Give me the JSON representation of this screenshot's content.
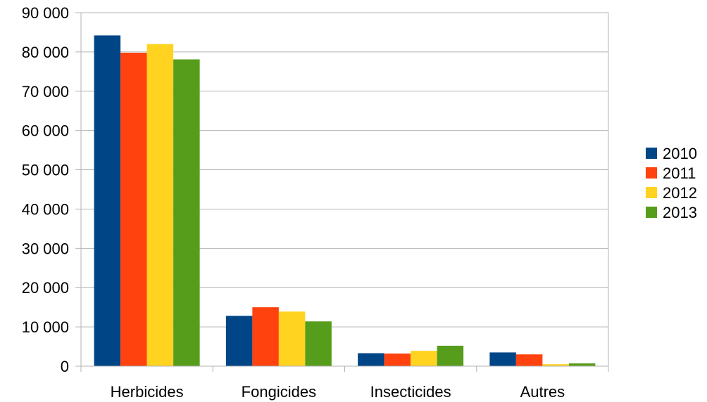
{
  "chart_data": {
    "type": "bar",
    "categories": [
      "Herbicides",
      "Fongicides",
      "Insecticides",
      "Autres"
    ],
    "series": [
      {
        "name": "2010",
        "color": "#004586",
        "values": [
          84200,
          12800,
          3300,
          3500
        ]
      },
      {
        "name": "2011",
        "color": "#ff420e",
        "values": [
          79800,
          15000,
          3200,
          3000
        ]
      },
      {
        "name": "2012",
        "color": "#ffd320",
        "values": [
          82000,
          13900,
          3900,
          500
        ]
      },
      {
        "name": "2013",
        "color": "#579d1c",
        "values": [
          78100,
          11400,
          5200,
          700
        ]
      }
    ],
    "y_ticks": [
      "0",
      "10 000",
      "20 000",
      "30 000",
      "40 000",
      "50 000",
      "60 000",
      "70 000",
      "80 000",
      "90 000"
    ],
    "ylim": [
      0,
      90000
    ],
    "grid": true,
    "legend_position": "right"
  }
}
